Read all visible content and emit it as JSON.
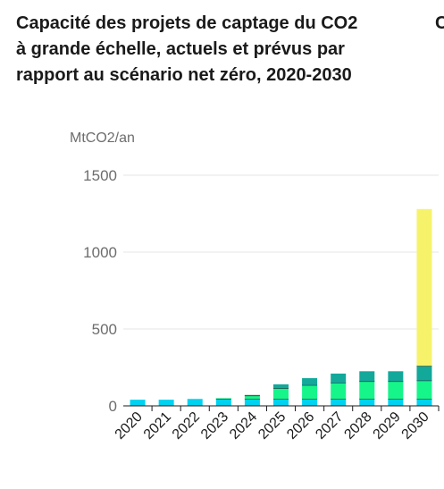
{
  "header": {
    "title_lines": [
      "Capacité des projets de captage du CO2",
      "à grande échelle, actuels et prévus par",
      "rapport au scénario net zéro, 2020-2030"
    ],
    "next_title_fragment": "C"
  },
  "chart_data": {
    "type": "bar",
    "stacked": true,
    "ylabel": "MtCO2/an",
    "ylim": [
      0,
      1500
    ],
    "yticks": [
      0,
      500,
      1000,
      1500
    ],
    "grid": true,
    "categories": [
      "2020",
      "2021",
      "2022",
      "2023",
      "2024",
      "2025",
      "2026",
      "2027",
      "2028",
      "2029",
      "2030"
    ],
    "series": [
      {
        "color": "#00d2f0",
        "values": [
          40,
          40,
          45,
          45,
          45,
          45,
          45,
          45,
          45,
          45,
          45
        ]
      },
      {
        "color": "#16f58a",
        "values": [
          0,
          0,
          0,
          5,
          22,
          70,
          90,
          105,
          115,
          115,
          120
        ]
      },
      {
        "color": "#12a89a",
        "values": [
          0,
          0,
          0,
          0,
          3,
          25,
          45,
          60,
          65,
          65,
          95
        ]
      },
      {
        "color": "#f6f36a",
        "values": [
          0,
          0,
          0,
          0,
          0,
          0,
          0,
          0,
          0,
          0,
          1020
        ]
      }
    ]
  }
}
